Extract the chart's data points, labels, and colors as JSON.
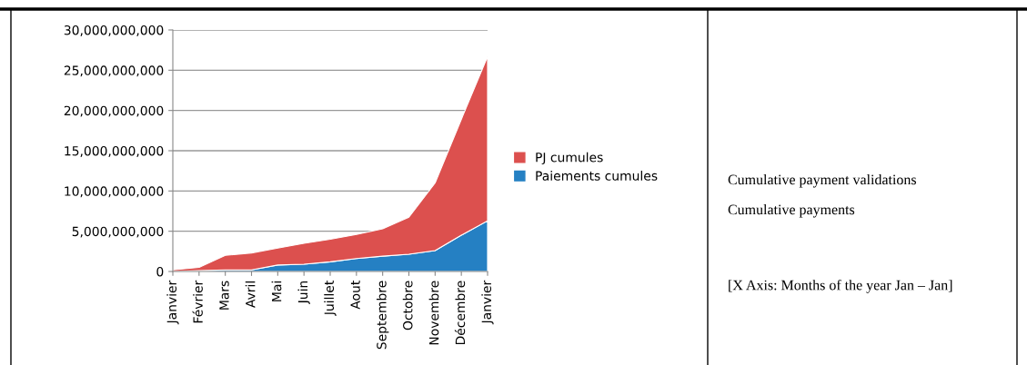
{
  "chart_data": {
    "type": "area",
    "stacked": true,
    "categories": [
      "Janvier",
      "Février",
      "Mars",
      "Avril",
      "Mai",
      "Juin",
      "Juillet",
      "Aout",
      "Septembre",
      "Octobre",
      "Novembre",
      "Décembre",
      "Janvier"
    ],
    "series": [
      {
        "name": "Paiements cumules",
        "color": "#2580c3",
        "values": [
          0,
          100000000,
          200000000,
          200000000,
          800000000,
          900000000,
          1200000000,
          1600000000,
          1900000000,
          2150000000,
          2600000000,
          4500000000,
          6300000000
        ]
      },
      {
        "name": "PJ cumules",
        "color": "#dc504e",
        "values": [
          200000000,
          400000000,
          1800000000,
          2100000000,
          2100000000,
          2600000000,
          2800000000,
          3000000000,
          3400000000,
          4600000000,
          8400000000,
          14400000000,
          20400000000
        ]
      }
    ],
    "ylim": [
      0,
      30000000000
    ],
    "yticks": [
      {
        "value": 0,
        "label": "0"
      },
      {
        "value": 5000000000,
        "label": "5,000,000,000"
      },
      {
        "value": 10000000000,
        "label": "10,000,000,000"
      },
      {
        "value": 15000000000,
        "label": "15,000,000,000"
      },
      {
        "value": 20000000000,
        "label": "20,000,000,000"
      },
      {
        "value": 25000000000,
        "label": "25,000,000,000"
      },
      {
        "value": 30000000000,
        "label": "30,000,000,000"
      }
    ],
    "grid": "y",
    "legend": "right",
    "annotations": [
      "Cumulative payment validations",
      "Cumulative payments",
      "[X Axis: Months of the year Jan – Jan]"
    ]
  }
}
